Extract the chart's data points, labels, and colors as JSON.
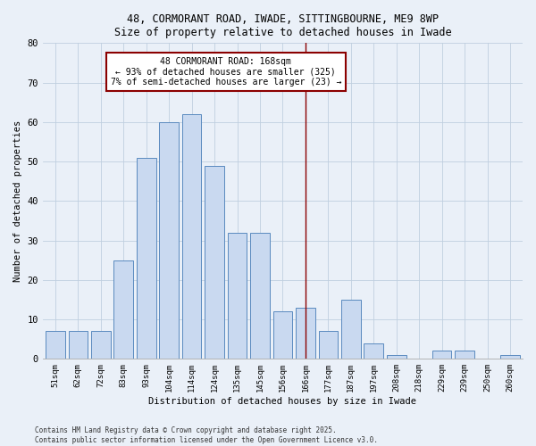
{
  "title1": "48, CORMORANT ROAD, IWADE, SITTINGBOURNE, ME9 8WP",
  "title2": "Size of property relative to detached houses in Iwade",
  "xlabel": "Distribution of detached houses by size in Iwade",
  "ylabel": "Number of detached properties",
  "bar_labels": [
    "51sqm",
    "62sqm",
    "72sqm",
    "83sqm",
    "93sqm",
    "104sqm",
    "114sqm",
    "124sqm",
    "135sqm",
    "145sqm",
    "156sqm",
    "166sqm",
    "177sqm",
    "187sqm",
    "197sqm",
    "208sqm",
    "218sqm",
    "229sqm",
    "239sqm",
    "250sqm",
    "260sqm"
  ],
  "bar_values": [
    7,
    7,
    7,
    25,
    51,
    60,
    62,
    49,
    32,
    32,
    12,
    13,
    7,
    15,
    4,
    1,
    0,
    2,
    2,
    0,
    1
  ],
  "bar_color": "#c9d9f0",
  "bar_edge_color": "#5a8abf",
  "vline_color": "#8b0000",
  "annotation_line1": "48 CORMORANT ROAD: 168sqm",
  "annotation_line2": "← 93% of detached houses are smaller (325)",
  "annotation_line3": "7% of semi-detached houses are larger (23) →",
  "annotation_box_color": "#8b0000",
  "annotation_bg": "#ffffff",
  "ylim": [
    0,
    80
  ],
  "yticks": [
    0,
    10,
    20,
    30,
    40,
    50,
    60,
    70,
    80
  ],
  "grid_color": "#c0cfdf",
  "bg_color": "#eaf0f8",
  "footer1": "Contains HM Land Registry data © Crown copyright and database right 2025.",
  "footer2": "Contains public sector information licensed under the Open Government Licence v3.0."
}
